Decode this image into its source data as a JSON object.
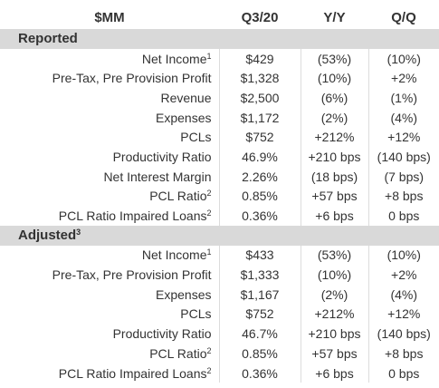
{
  "header": {
    "title": "$MM",
    "columns": [
      "Q3/20",
      "Y/Y",
      "Q/Q"
    ]
  },
  "sections": [
    {
      "title": "Reported",
      "rows": [
        {
          "label": "Net Income",
          "note": "1",
          "cells": [
            "$429",
            "(53%)",
            "(10%)"
          ]
        },
        {
          "label": "Pre-Tax, Pre Provision Profit",
          "cells": [
            "$1,328",
            "(10%)",
            "+2%"
          ]
        },
        {
          "label": "Revenue",
          "cells": [
            "$2,500",
            "(6%)",
            "(1%)"
          ]
        },
        {
          "label": "Expenses",
          "cells": [
            "$1,172",
            "(2%)",
            "(4%)"
          ]
        },
        {
          "label": "PCLs",
          "cells": [
            "$752",
            "+212%",
            "+12%"
          ]
        },
        {
          "label": "Productivity Ratio",
          "cells": [
            "46.9%",
            "+210 bps",
            "(140 bps)"
          ]
        },
        {
          "label": "Net Interest Margin",
          "cells": [
            "2.26%",
            "(18 bps)",
            "(7 bps)"
          ]
        },
        {
          "label": "PCL Ratio",
          "note": "2",
          "cells": [
            "0.85%",
            "+57 bps",
            "+8 bps"
          ]
        },
        {
          "label": "PCL Ratio Impaired Loans",
          "note": "2",
          "cells": [
            "0.36%",
            "+6 bps",
            "0 bps"
          ]
        }
      ]
    },
    {
      "title": "Adjusted",
      "note": "3",
      "rows": [
        {
          "label": "Net Income",
          "note": "1",
          "cells": [
            "$433",
            "(53%)",
            "(10%)"
          ]
        },
        {
          "label": "Pre-Tax, Pre Provision Profit",
          "cells": [
            "$1,333",
            "(10%)",
            "+2%"
          ]
        },
        {
          "label": "Expenses",
          "cells": [
            "$1,167",
            "(2%)",
            "(4%)"
          ]
        },
        {
          "label": "PCLs",
          "cells": [
            "$752",
            "+212%",
            "+12%"
          ]
        },
        {
          "label": "Productivity Ratio",
          "cells": [
            "46.7%",
            "+210 bps",
            "(140 bps)"
          ]
        },
        {
          "label": "PCL Ratio",
          "note": "2",
          "cells": [
            "0.85%",
            "+57 bps",
            "+8 bps"
          ]
        },
        {
          "label": "PCL Ratio Impaired Loans",
          "note": "2",
          "cells": [
            "0.36%",
            "+6 bps",
            "0 bps"
          ]
        }
      ]
    }
  ]
}
